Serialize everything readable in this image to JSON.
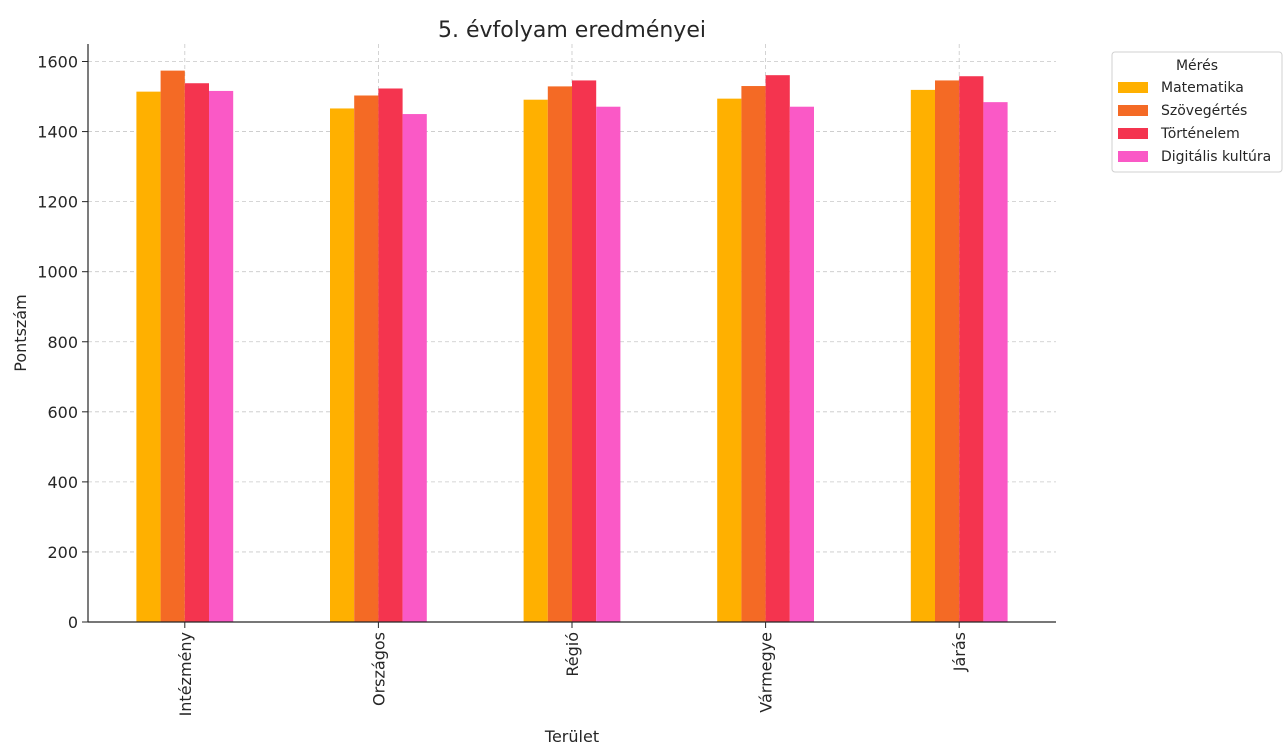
{
  "chart_data": {
    "type": "bar",
    "title": "5. évfolyam eredményei",
    "xlabel": "Terület",
    "ylabel": "Pontszám",
    "categories": [
      "Intézmény",
      "Országos",
      "Régió",
      "Vármegye",
      "Járás"
    ],
    "series": [
      {
        "name": "Matematika",
        "color": "#FFB000",
        "values": [
          1514,
          1466,
          1491,
          1494,
          1519
        ]
      },
      {
        "name": "Szövegértés",
        "color": "#F46A25",
        "values": [
          1574,
          1503,
          1529,
          1530,
          1546
        ]
      },
      {
        "name": "Történelem",
        "color": "#F4344F",
        "values": [
          1538,
          1523,
          1546,
          1561,
          1558
        ]
      },
      {
        "name": "Digitális kultúra",
        "color": "#FA59C6",
        "values": [
          1516,
          1450,
          1471,
          1471,
          1484
        ]
      }
    ],
    "ylim": [
      0,
      1650
    ],
    "yticks": [
      0,
      200,
      400,
      600,
      800,
      1000,
      1200,
      1400,
      1600
    ],
    "grid": true,
    "legend": {
      "title": "Mérés",
      "placement": "outside-top-right"
    }
  }
}
